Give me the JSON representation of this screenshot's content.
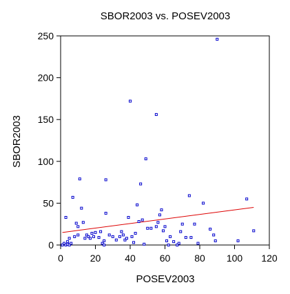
{
  "chart_data": {
    "type": "scatter",
    "title": "SBOR2003 vs. POSEV2003",
    "xlabel": "POSEV2003",
    "ylabel": "SBOR2003",
    "xlim": [
      0,
      120
    ],
    "ylim": [
      0,
      250
    ],
    "xticks": [
      0,
      20,
      40,
      60,
      80,
      100,
      120
    ],
    "yticks": [
      0,
      50,
      100,
      150,
      200,
      250
    ],
    "grid": false,
    "legend": "none",
    "marker_color": "#0000cc",
    "fit_line_color": "#dd0000",
    "series": [
      {
        "type": "scatter",
        "points": [
          [
            1,
            0
          ],
          [
            2,
            2
          ],
          [
            3,
            0
          ],
          [
            3,
            33
          ],
          [
            4,
            4
          ],
          [
            4,
            1
          ],
          [
            5,
            0
          ],
          [
            5,
            8
          ],
          [
            6,
            2
          ],
          [
            7,
            57
          ],
          [
            8,
            10
          ],
          [
            9,
            26
          ],
          [
            10,
            12
          ],
          [
            10,
            22
          ],
          [
            11,
            79
          ],
          [
            12,
            44
          ],
          [
            13,
            27
          ],
          [
            14,
            8
          ],
          [
            15,
            12
          ],
          [
            16,
            10
          ],
          [
            17,
            8
          ],
          [
            18,
            14
          ],
          [
            19,
            10
          ],
          [
            20,
            15
          ],
          [
            22,
            9
          ],
          [
            23,
            16
          ],
          [
            24,
            2
          ],
          [
            25,
            0
          ],
          [
            25,
            5
          ],
          [
            26,
            78
          ],
          [
            26,
            38
          ],
          [
            28,
            12
          ],
          [
            30,
            10
          ],
          [
            32,
            6
          ],
          [
            34,
            10
          ],
          [
            35,
            16
          ],
          [
            36,
            12
          ],
          [
            37,
            6
          ],
          [
            38,
            8
          ],
          [
            39,
            33
          ],
          [
            40,
            172
          ],
          [
            41,
            10
          ],
          [
            42,
            3
          ],
          [
            43,
            14
          ],
          [
            44,
            48
          ],
          [
            45,
            28
          ],
          [
            46,
            73
          ],
          [
            47,
            30
          ],
          [
            48,
            1
          ],
          [
            49,
            103
          ],
          [
            50,
            20
          ],
          [
            52,
            20
          ],
          [
            55,
            22
          ],
          [
            55,
            156
          ],
          [
            56,
            27
          ],
          [
            57,
            36
          ],
          [
            58,
            42
          ],
          [
            59,
            17
          ],
          [
            60,
            22
          ],
          [
            61,
            5
          ],
          [
            62,
            0
          ],
          [
            63,
            10
          ],
          [
            65,
            4
          ],
          [
            67,
            0
          ],
          [
            68,
            2
          ],
          [
            69,
            16
          ],
          [
            70,
            25
          ],
          [
            72,
            9
          ],
          [
            74,
            59
          ],
          [
            75,
            9
          ],
          [
            77,
            25
          ],
          [
            79,
            2
          ],
          [
            82,
            50
          ],
          [
            86,
            19
          ],
          [
            88,
            12
          ],
          [
            89,
            5
          ],
          [
            90,
            246
          ],
          [
            102,
            5
          ],
          [
            107,
            55
          ],
          [
            111,
            17
          ]
        ]
      },
      {
        "type": "line",
        "points": [
          [
            1,
            15
          ],
          [
            111,
            45
          ]
        ]
      }
    ]
  }
}
